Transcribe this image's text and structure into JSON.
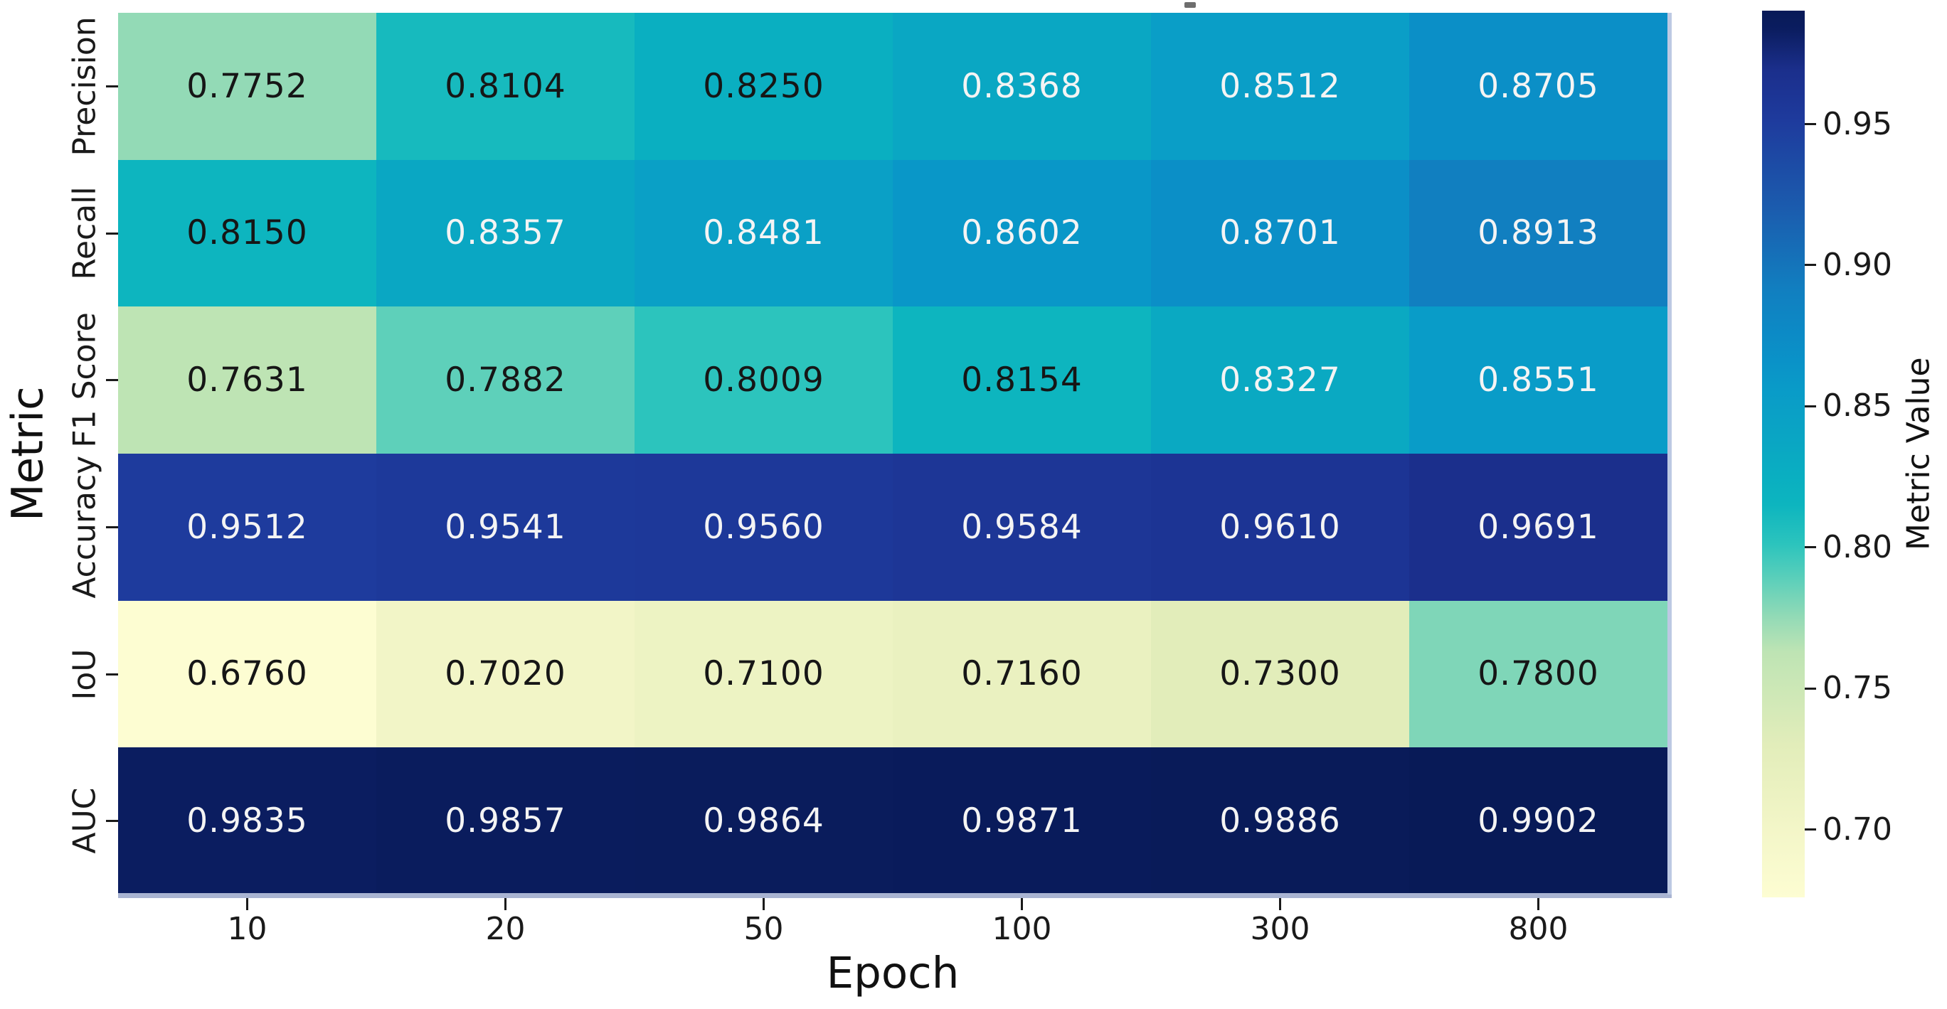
{
  "chart_data": {
    "type": "heatmap",
    "title": "",
    "xlabel": "Epoch",
    "ylabel": "Metric",
    "x_categories": [
      "10",
      "20",
      "50",
      "100",
      "300",
      "800"
    ],
    "y_categories": [
      "Precision",
      "Recall",
      "F1 Score",
      "Accuracy",
      "IoU",
      "AUC"
    ],
    "series": [
      {
        "name": "Precision",
        "values": [
          0.7752,
          0.8104,
          0.825,
          0.8368,
          0.8512,
          0.8705
        ]
      },
      {
        "name": "Recall",
        "values": [
          0.815,
          0.8357,
          0.8481,
          0.8602,
          0.8701,
          0.8913
        ]
      },
      {
        "name": "F1 Score",
        "values": [
          0.7631,
          0.7882,
          0.8009,
          0.8154,
          0.8327,
          0.8551
        ]
      },
      {
        "name": "Accuracy",
        "values": [
          0.9512,
          0.9541,
          0.956,
          0.9584,
          0.961,
          0.9691
        ]
      },
      {
        "name": "IoU",
        "values": [
          0.676,
          0.702,
          0.71,
          0.716,
          0.73,
          0.78
        ]
      },
      {
        "name": "AUC",
        "values": [
          0.9835,
          0.9857,
          0.9864,
          0.9871,
          0.9886,
          0.9902
        ]
      }
    ],
    "cell_value_decimals": 4,
    "vmin": 0.676,
    "vmax": 0.9902,
    "colorbar": {
      "label": "Metric Value",
      "ticks": [
        0.95,
        0.9,
        0.85,
        0.8,
        0.75,
        0.7
      ],
      "tick_decimals": 2,
      "position": "right"
    },
    "colormap_name": "YlGnBu-style",
    "colormap_stops": [
      [
        0.676,
        "#fdfdd2"
      ],
      [
        0.7,
        "#f3f6c8"
      ],
      [
        0.716,
        "#eaf1c0"
      ],
      [
        0.73,
        "#e2edba"
      ],
      [
        0.763,
        "#bee4b4"
      ],
      [
        0.7752,
        "#93dab6"
      ],
      [
        0.788,
        "#5fd0ba"
      ],
      [
        0.801,
        "#2cc4bd"
      ],
      [
        0.815,
        "#0db5bf"
      ],
      [
        0.825,
        "#0aafc1"
      ],
      [
        0.836,
        "#0aa7c3"
      ],
      [
        0.848,
        "#0aa0c6"
      ],
      [
        0.856,
        "#099bc8"
      ],
      [
        0.865,
        "#0a93c8"
      ],
      [
        0.875,
        "#0c8bc6"
      ],
      [
        0.8913,
        "#117fc0"
      ],
      [
        0.92,
        "#1b5cae"
      ],
      [
        0.9512,
        "#1e3b9d"
      ],
      [
        0.961,
        "#1c3494"
      ],
      [
        0.9691,
        "#1b2f8c"
      ],
      [
        0.9835,
        "#0b1d60"
      ],
      [
        0.9902,
        "#081a57"
      ]
    ],
    "annotation_colors": {
      "dark_text": "#161616",
      "light_text": "#f4f4f4"
    },
    "layout": {
      "grid_lines": false,
      "cell_gap": 0
    },
    "stray_mark_glyph": ""
  }
}
